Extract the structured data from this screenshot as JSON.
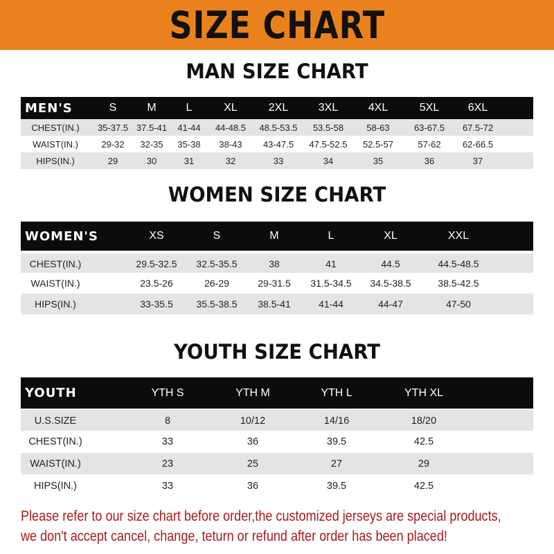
{
  "banner_title": "SIZE CHART",
  "colors": {
    "banner": "#e9821d",
    "header_row": "#0c0c0c",
    "note_text": "#a51d1d"
  },
  "men": {
    "title": "MAN SIZE CHART",
    "header": [
      "MEN'S",
      "S",
      "M",
      "L",
      "XL",
      "2XL",
      "3XL",
      "4XL",
      "5XL",
      "6XL"
    ],
    "rows": [
      [
        "CHEST(IN.)",
        "35-37.5",
        "37.5-41",
        "41-44",
        "44-48.5",
        "48.5-53.5",
        "53.5-58",
        "58-63",
        "63-67.5",
        "67.5-72"
      ],
      [
        "WAIST(IN.)",
        "29-32",
        "32-35",
        "35-38",
        "38-43",
        "43-47.5",
        "47.5-52.5",
        "52.5-57",
        "57-62",
        "62-66.5"
      ],
      [
        "HIPS(IN.)",
        "29",
        "30",
        "31",
        "32",
        "33",
        "34",
        "35",
        "36",
        "37"
      ]
    ]
  },
  "women": {
    "title": "WOMEN SIZE CHART",
    "header": [
      "WOMEN'S",
      "XS",
      "S",
      "M",
      "L",
      "XL",
      "XXL"
    ],
    "rows": [
      [
        "CHEST(IN.)",
        "29.5-32.5",
        "32.5-35.5",
        "38",
        "41",
        "44.5",
        "44.5-48.5"
      ],
      [
        "WAIST(IN.)",
        "23.5-26",
        "26-29",
        "29-31.5",
        "31.5-34.5",
        "34.5-38.5",
        "38.5-42.5"
      ],
      [
        "HIPS(IN.)",
        "33-35.5",
        "35.5-38.5",
        "38.5-41",
        "41-44",
        "44-47",
        "47-50"
      ]
    ]
  },
  "youth": {
    "title": "YOUTH SIZE CHART",
    "header": [
      "YOUTH",
      "YTH S",
      "YTH M",
      "YTH L",
      "YTH XL"
    ],
    "rows": [
      [
        "U.S.SIZE",
        "8",
        "10/12",
        "14/16",
        "18/20"
      ],
      [
        "CHEST(IN.)",
        "33",
        "36",
        "39.5",
        "42.5"
      ],
      [
        "WAIST(IN.)",
        "23",
        "25",
        "27",
        "29"
      ],
      [
        "HIPS(IN.)",
        "33",
        "36",
        "39.5",
        "42.5"
      ]
    ]
  },
  "note": {
    "line1": "Please refer to our size chart before order,the customized jerseys are special products,",
    "line2": "we don't accept cancel, change, teturn or refund after order has been placed!"
  }
}
